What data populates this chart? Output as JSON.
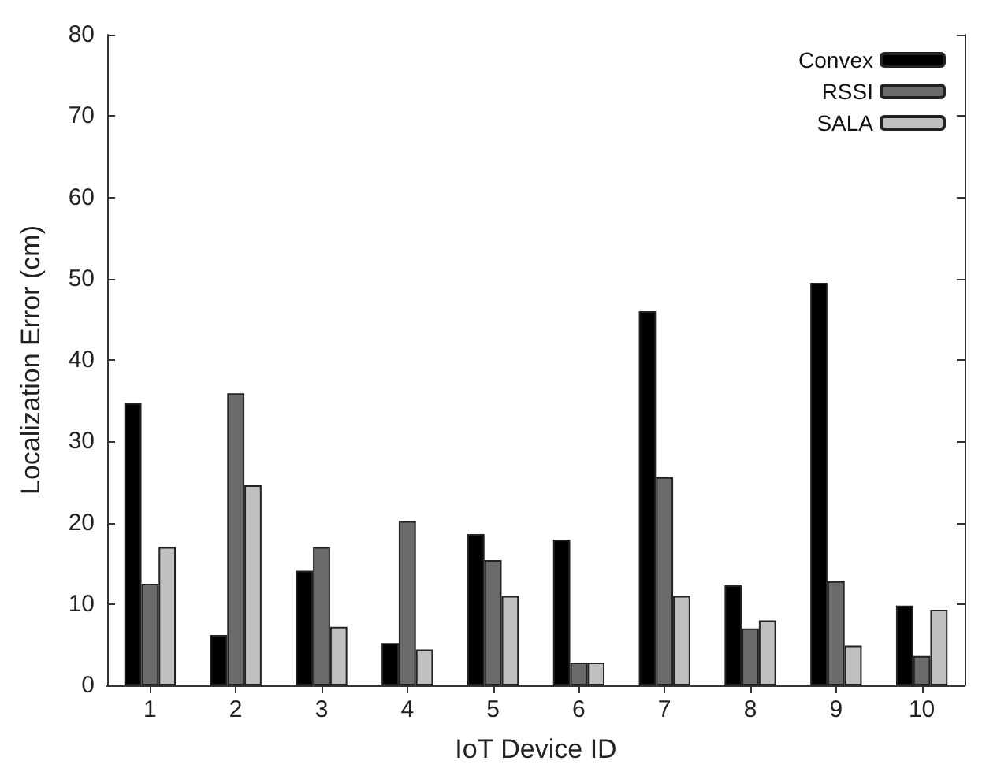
{
  "chart_data": {
    "type": "bar",
    "xlabel": "IoT Device ID",
    "ylabel": "Localization Error (cm)",
    "categories": [
      "1",
      "2",
      "3",
      "4",
      "5",
      "6",
      "7",
      "8",
      "9",
      "10"
    ],
    "series": [
      {
        "name": "Convex",
        "color": "#000000",
        "values": [
          34.7,
          6.2,
          14.1,
          5.2,
          18.6,
          17.9,
          46.0,
          12.3,
          49.5,
          9.8
        ]
      },
      {
        "name": "RSSI",
        "color": "#6b6b6b",
        "values": [
          12.5,
          35.9,
          17.0,
          20.2,
          15.4,
          2.8,
          25.6,
          7.0,
          12.8,
          3.6
        ]
      },
      {
        "name": "SALA",
        "color": "#c0c0c0",
        "values": [
          17.0,
          24.6,
          7.2,
          4.4,
          11.0,
          2.8,
          11.0,
          8.0,
          4.9,
          9.3
        ]
      }
    ],
    "ylim": [
      0,
      80
    ],
    "yticks": [
      0,
      10,
      20,
      30,
      40,
      50,
      60,
      70,
      80
    ],
    "grid": false,
    "legend": "top right"
  }
}
